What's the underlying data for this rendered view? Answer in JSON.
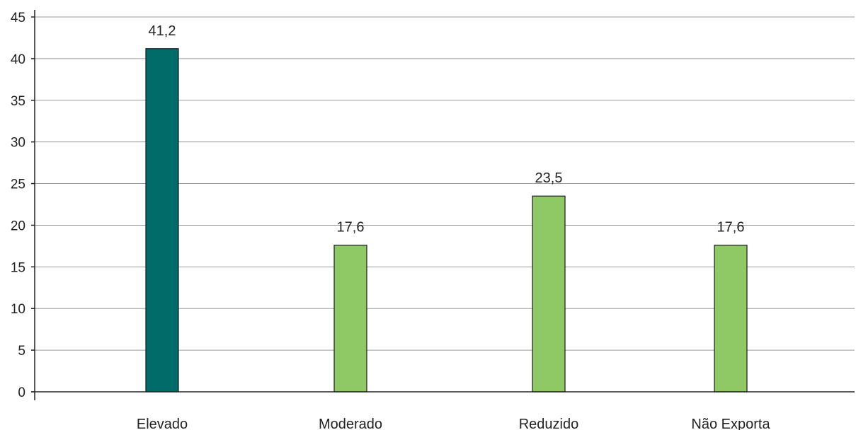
{
  "chart_data": {
    "type": "bar",
    "categories": [
      "Elevado",
      "Moderado",
      "Reduzido",
      "Não Exporta"
    ],
    "values": [
      41.2,
      17.6,
      23.5,
      17.6
    ],
    "value_labels": [
      "41,2",
      "17,6",
      "23,5",
      "17,6"
    ],
    "yticks": [
      "0",
      "5",
      "10",
      "15",
      "20",
      "25",
      "30",
      "35",
      "40",
      "45"
    ],
    "ylim": [
      0,
      45
    ],
    "grid": true,
    "legend": "none",
    "colors": {
      "Elevado": "#006b68",
      "Moderado": "#8ec965",
      "Reduzido": "#8ec965",
      "Não Exporta": "#8ec965"
    },
    "bar_outline": "#1a1a1a",
    "title": "",
    "xlabel": "",
    "ylabel": ""
  }
}
